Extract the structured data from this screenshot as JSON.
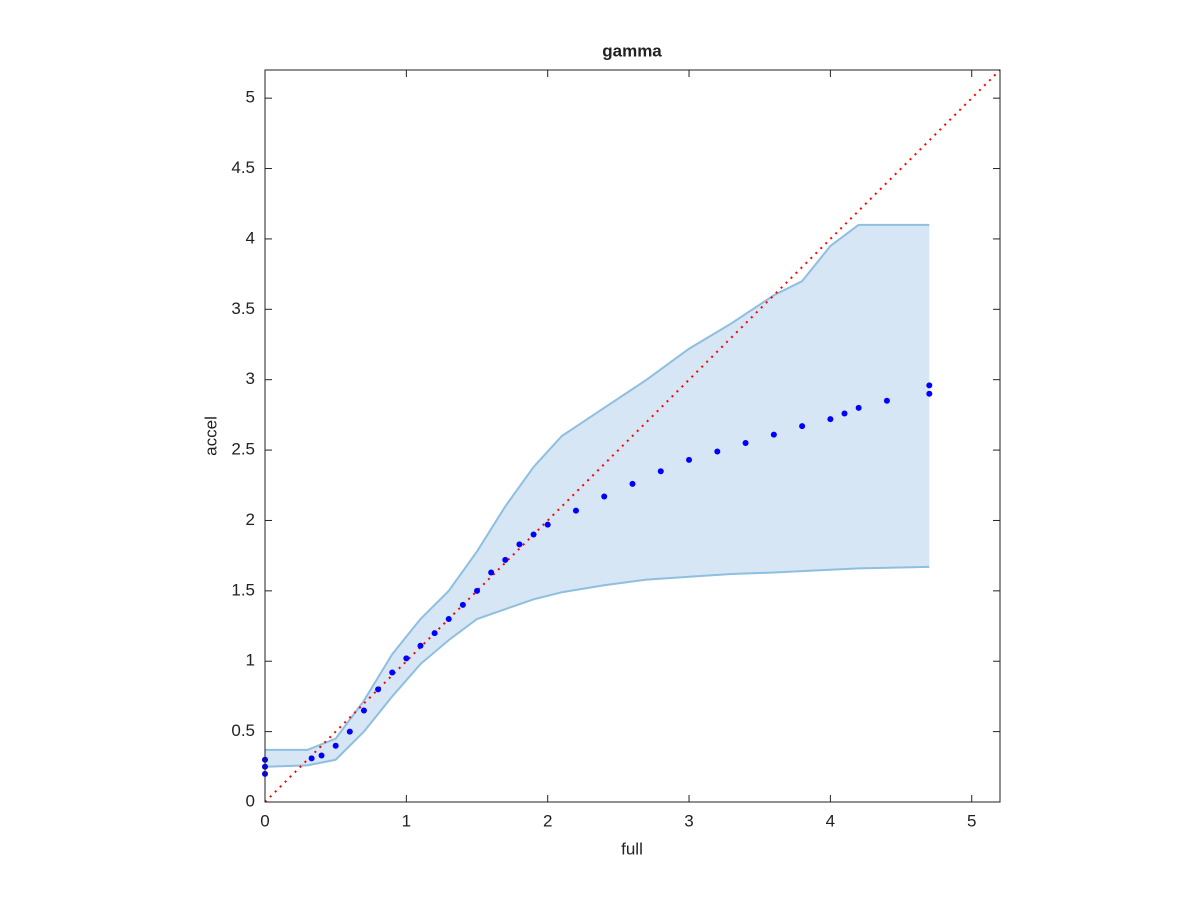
{
  "chart_data": {
    "type": "scatter",
    "title": "gamma",
    "x_label": "full",
    "y_label": "accel",
    "xlim": [
      0,
      5.2
    ],
    "ylim": [
      0,
      5.2
    ],
    "xticks": [
      0,
      1,
      2,
      3,
      4,
      5
    ],
    "yticks": [
      0,
      0.5,
      1,
      1.5,
      2,
      2.5,
      3,
      3.5,
      4,
      4.5,
      5
    ],
    "band": {
      "color": "#d6e6f4",
      "edge_color": "#8fbfdf",
      "x": [
        0,
        0.3,
        0.5,
        0.7,
        0.9,
        1.1,
        1.3,
        1.5,
        1.7,
        1.9,
        2.1,
        2.4,
        2.7,
        3.0,
        3.3,
        3.6,
        3.8,
        4.0,
        4.2,
        4.7
      ],
      "upper": [
        0.37,
        0.37,
        0.45,
        0.72,
        1.05,
        1.3,
        1.5,
        1.78,
        2.1,
        2.38,
        2.6,
        2.8,
        3.0,
        3.22,
        3.4,
        3.6,
        3.7,
        3.95,
        4.1,
        4.1
      ],
      "lower": [
        0.25,
        0.26,
        0.3,
        0.5,
        0.75,
        0.98,
        1.15,
        1.3,
        1.37,
        1.44,
        1.49,
        1.54,
        1.58,
        1.6,
        1.62,
        1.63,
        1.64,
        1.65,
        1.66,
        1.67
      ]
    },
    "reference_line": {
      "color": "#ff0000",
      "x": [
        0,
        5.2
      ],
      "y": [
        0,
        5.2
      ]
    },
    "series": [
      {
        "color": "#0000ff",
        "x": [
          0,
          0,
          0,
          0.33,
          0.4,
          0.5,
          0.6,
          0.7,
          0.8,
          0.9,
          1.0,
          1.1,
          1.2,
          1.3,
          1.4,
          1.5,
          1.6,
          1.7,
          1.8,
          1.9,
          2.0,
          2.2,
          2.4,
          2.6,
          2.8,
          3.0,
          3.2,
          3.4,
          3.6,
          3.8,
          4.0,
          4.1,
          4.2,
          4.4,
          4.7,
          4.7
        ],
        "y": [
          0.2,
          0.25,
          0.3,
          0.31,
          0.33,
          0.4,
          0.5,
          0.65,
          0.8,
          0.92,
          1.02,
          1.11,
          1.2,
          1.3,
          1.4,
          1.5,
          1.63,
          1.72,
          1.83,
          1.9,
          1.97,
          2.07,
          2.17,
          2.26,
          2.35,
          2.43,
          2.49,
          2.55,
          2.61,
          2.67,
          2.72,
          2.76,
          2.8,
          2.85,
          2.9,
          2.96
        ]
      }
    ]
  }
}
